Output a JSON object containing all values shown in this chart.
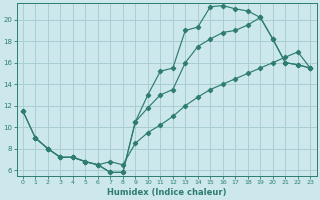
{
  "xlabel": "Humidex (Indice chaleur)",
  "bg_color": "#cce8ec",
  "grid_color": "#aacdd4",
  "line_color": "#2e7d6e",
  "ylim": [
    5.5,
    21.5
  ],
  "xlim": [
    -0.5,
    23.5
  ],
  "yticks": [
    6,
    8,
    10,
    12,
    14,
    16,
    18,
    20
  ],
  "xticks": [
    0,
    1,
    2,
    3,
    4,
    5,
    6,
    7,
    8,
    9,
    10,
    11,
    12,
    13,
    14,
    15,
    16,
    17,
    18,
    19,
    20,
    21,
    22,
    23
  ],
  "curve1_x": [
    0,
    1,
    2,
    3,
    4,
    5,
    6,
    7,
    8,
    9,
    10,
    11,
    12,
    13,
    14,
    15,
    16,
    17,
    18,
    19,
    20,
    21,
    22,
    23
  ],
  "curve1_y": [
    11.5,
    9.0,
    8.0,
    7.2,
    7.2,
    6.8,
    6.5,
    5.8,
    5.8,
    10.5,
    13.0,
    15.2,
    15.5,
    19.0,
    19.3,
    21.2,
    21.3,
    21.0,
    20.8,
    20.2,
    18.2,
    16.0,
    15.8,
    15.5
  ],
  "curve2_x": [
    0,
    1,
    2,
    3,
    4,
    5,
    6,
    7,
    8,
    9,
    10,
    11,
    12,
    13,
    14,
    15,
    16,
    17,
    18,
    19,
    20,
    21,
    22,
    23
  ],
  "curve2_y": [
    11.5,
    9.0,
    8.0,
    7.2,
    7.2,
    6.8,
    6.5,
    5.8,
    5.8,
    10.5,
    11.8,
    13.0,
    13.5,
    16.0,
    17.5,
    18.2,
    18.8,
    19.0,
    19.5,
    20.2,
    18.2,
    16.0,
    15.8,
    15.5
  ],
  "curve3_x": [
    1,
    2,
    3,
    4,
    5,
    6,
    7,
    8,
    9,
    10,
    11,
    12,
    13,
    14,
    15,
    16,
    17,
    18,
    19,
    20,
    21,
    22,
    23
  ],
  "curve3_y": [
    9.0,
    8.0,
    7.2,
    7.2,
    6.8,
    6.5,
    6.8,
    6.5,
    8.5,
    9.5,
    10.2,
    11.0,
    12.0,
    12.8,
    13.5,
    14.0,
    14.5,
    15.0,
    15.5,
    16.0,
    16.5,
    17.0,
    15.5
  ]
}
